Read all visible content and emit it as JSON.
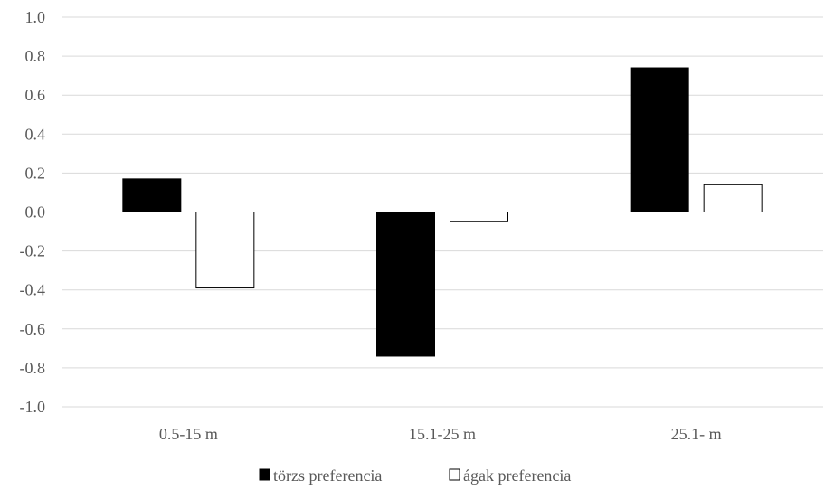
{
  "chart_data": {
    "type": "bar",
    "categories": [
      "0.5-15 m",
      "15.1-25 m",
      "25.1- m"
    ],
    "series": [
      {
        "name": "törzs preferencia",
        "values": [
          0.17,
          -0.74,
          0.74
        ],
        "fill": "#000000",
        "stroke": "#000000"
      },
      {
        "name": "ágak preferencia",
        "values": [
          -0.39,
          -0.05,
          0.14
        ],
        "fill": "#ffffff",
        "stroke": "#000000"
      }
    ],
    "title": "",
    "xlabel": "",
    "ylabel": "",
    "ylim": [
      -1.0,
      1.0
    ],
    "yticks": [
      "1.0",
      "0.8",
      "0.6",
      "0.4",
      "0.2",
      "0.0",
      "-0.2",
      "-0.4",
      "-0.6",
      "-0.8",
      "-1.0"
    ],
    "grid": true,
    "legend_position": "bottom",
    "colors": {
      "grid": "#d9d9d9",
      "text": "#595959"
    }
  }
}
